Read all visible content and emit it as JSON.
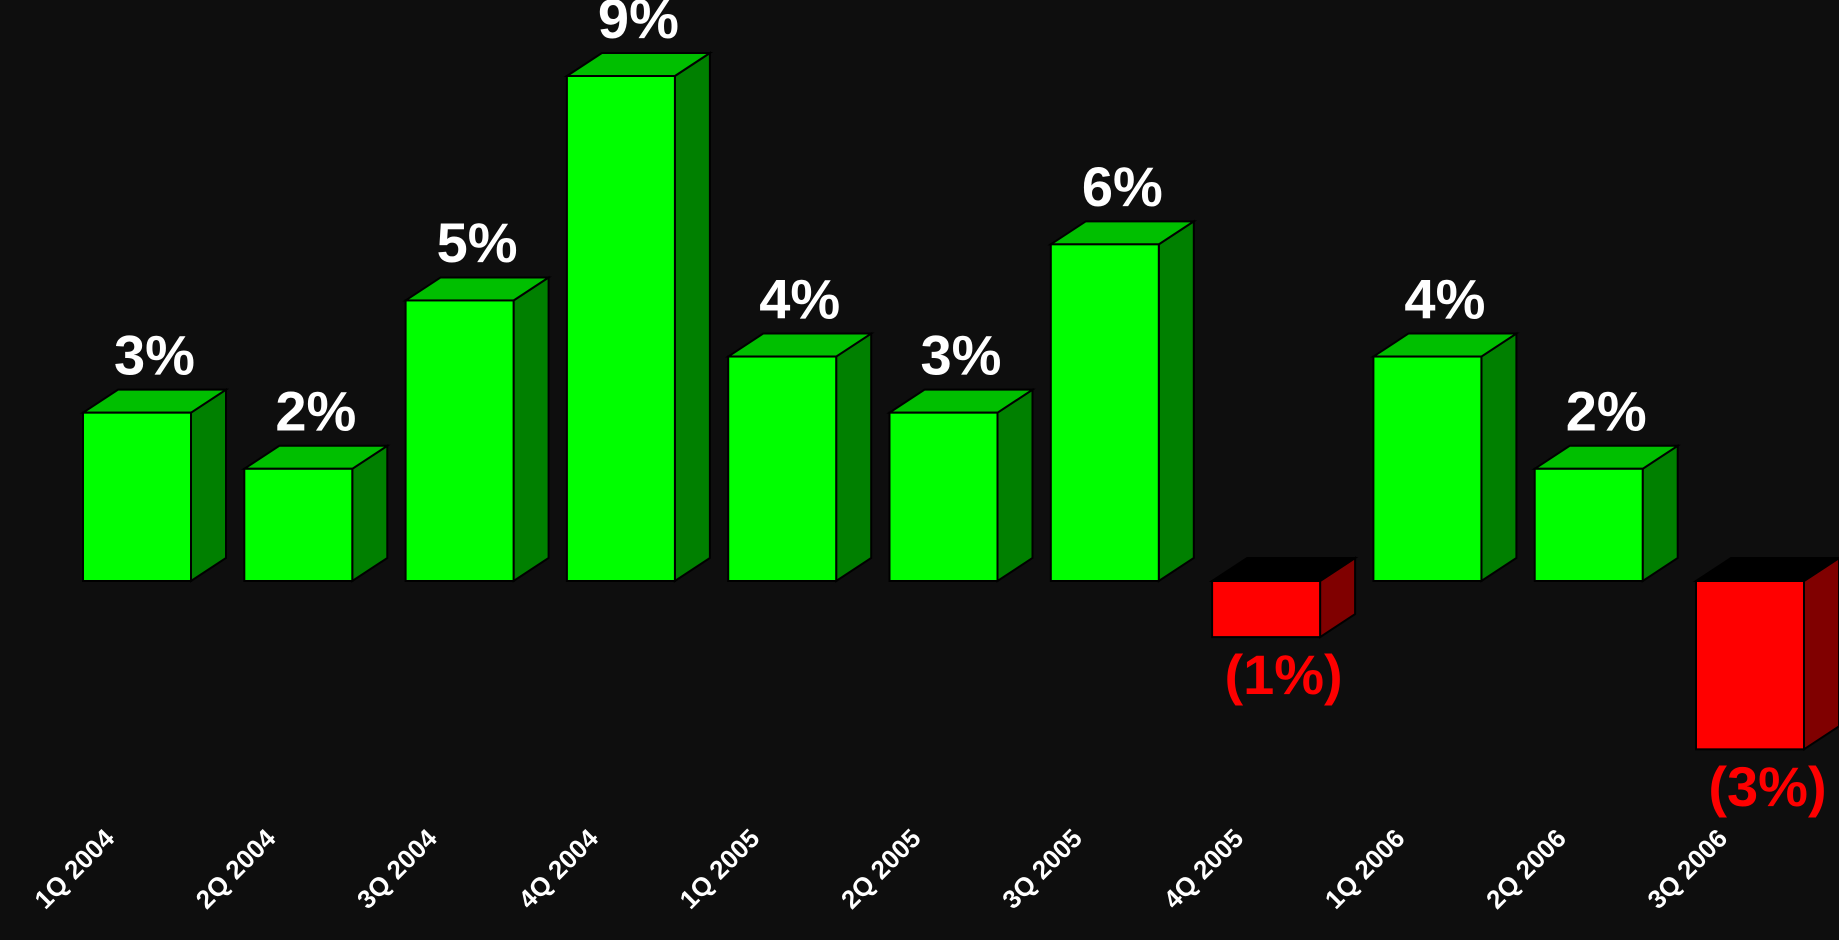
{
  "chart_data": {
    "type": "bar3d",
    "categories": [
      "1Q 2004",
      "2Q 2004",
      "3Q 2004",
      "4Q 2004",
      "1Q 2005",
      "2Q 2005",
      "3Q 2005",
      "4Q 2005",
      "1Q 2006",
      "2Q 2006",
      "3Q 2006"
    ],
    "values": [
      3,
      2,
      5,
      9,
      4,
      3,
      6,
      -1,
      4,
      2,
      -3
    ],
    "value_labels": [
      "3%",
      "2%",
      "5%",
      "9%",
      "4%",
      "3%",
      "6%",
      "(1%)",
      "4%",
      "2%",
      "(3%)"
    ],
    "color": "#00ff00",
    "negative_color": "#ff0000"
  }
}
